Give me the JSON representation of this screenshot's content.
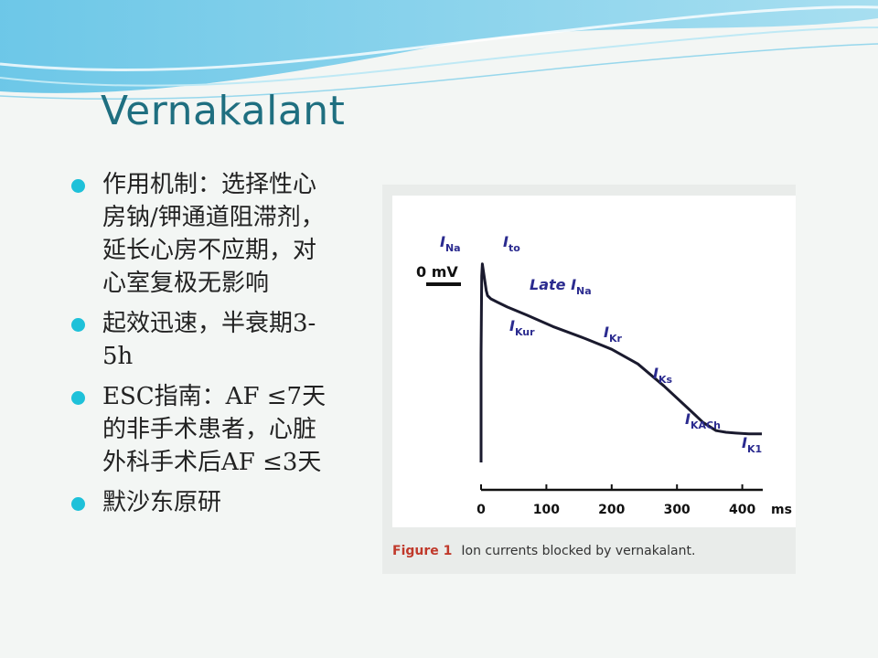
{
  "slide": {
    "title": "Vernakalant",
    "bullets": [
      "作用机制：选择性心房钠/钾通道阻滞剂，延长心房不应期，对心室复极无影响",
      "起效迅速，半衰期3-5h",
      "ESC指南：AF ≤7天的非手术患者，心脏外科手术后AF ≤3天",
      "默沙东原研"
    ]
  },
  "figure": {
    "caption_label": "Figure 1",
    "caption_text": "Ion currents blocked by vernakalant.",
    "zero_label": "0 mV",
    "currents": [
      {
        "name": "I",
        "sub": "Na"
      },
      {
        "name": "I",
        "sub": "to"
      },
      {
        "name": "Late I",
        "sub": "Na"
      },
      {
        "name": "I",
        "sub": "Kur"
      },
      {
        "name": "I",
        "sub": "Kr"
      },
      {
        "name": "I",
        "sub": "Ks"
      },
      {
        "name": "I",
        "sub": "KACh"
      },
      {
        "name": "I",
        "sub": "K1"
      }
    ],
    "x_ticks": [
      "0",
      "100",
      "200",
      "300",
      "400"
    ],
    "x_unit": "ms",
    "colors": {
      "trace": "#1a1a2e",
      "labels": "#2b2b8f",
      "axis": "#111111"
    }
  },
  "chart_data": {
    "type": "line",
    "title": "",
    "xlabel": "ms",
    "ylabel": "",
    "xlim": [
      0,
      430
    ],
    "series": [
      {
        "x": [
          0,
          1,
          2,
          5,
          8,
          10,
          15,
          25,
          40,
          70,
          110,
          160,
          200,
          240,
          280,
          320,
          340,
          360,
          375,
          390,
          410,
          430
        ],
        "y": [
          -85,
          10,
          25,
          8,
          -8,
          -14,
          -18,
          -22,
          -28,
          -38,
          -52,
          -67,
          -80,
          -98,
          -125,
          -155,
          -170,
          -180,
          -182,
          -183,
          -184,
          -184
        ]
      }
    ]
  }
}
